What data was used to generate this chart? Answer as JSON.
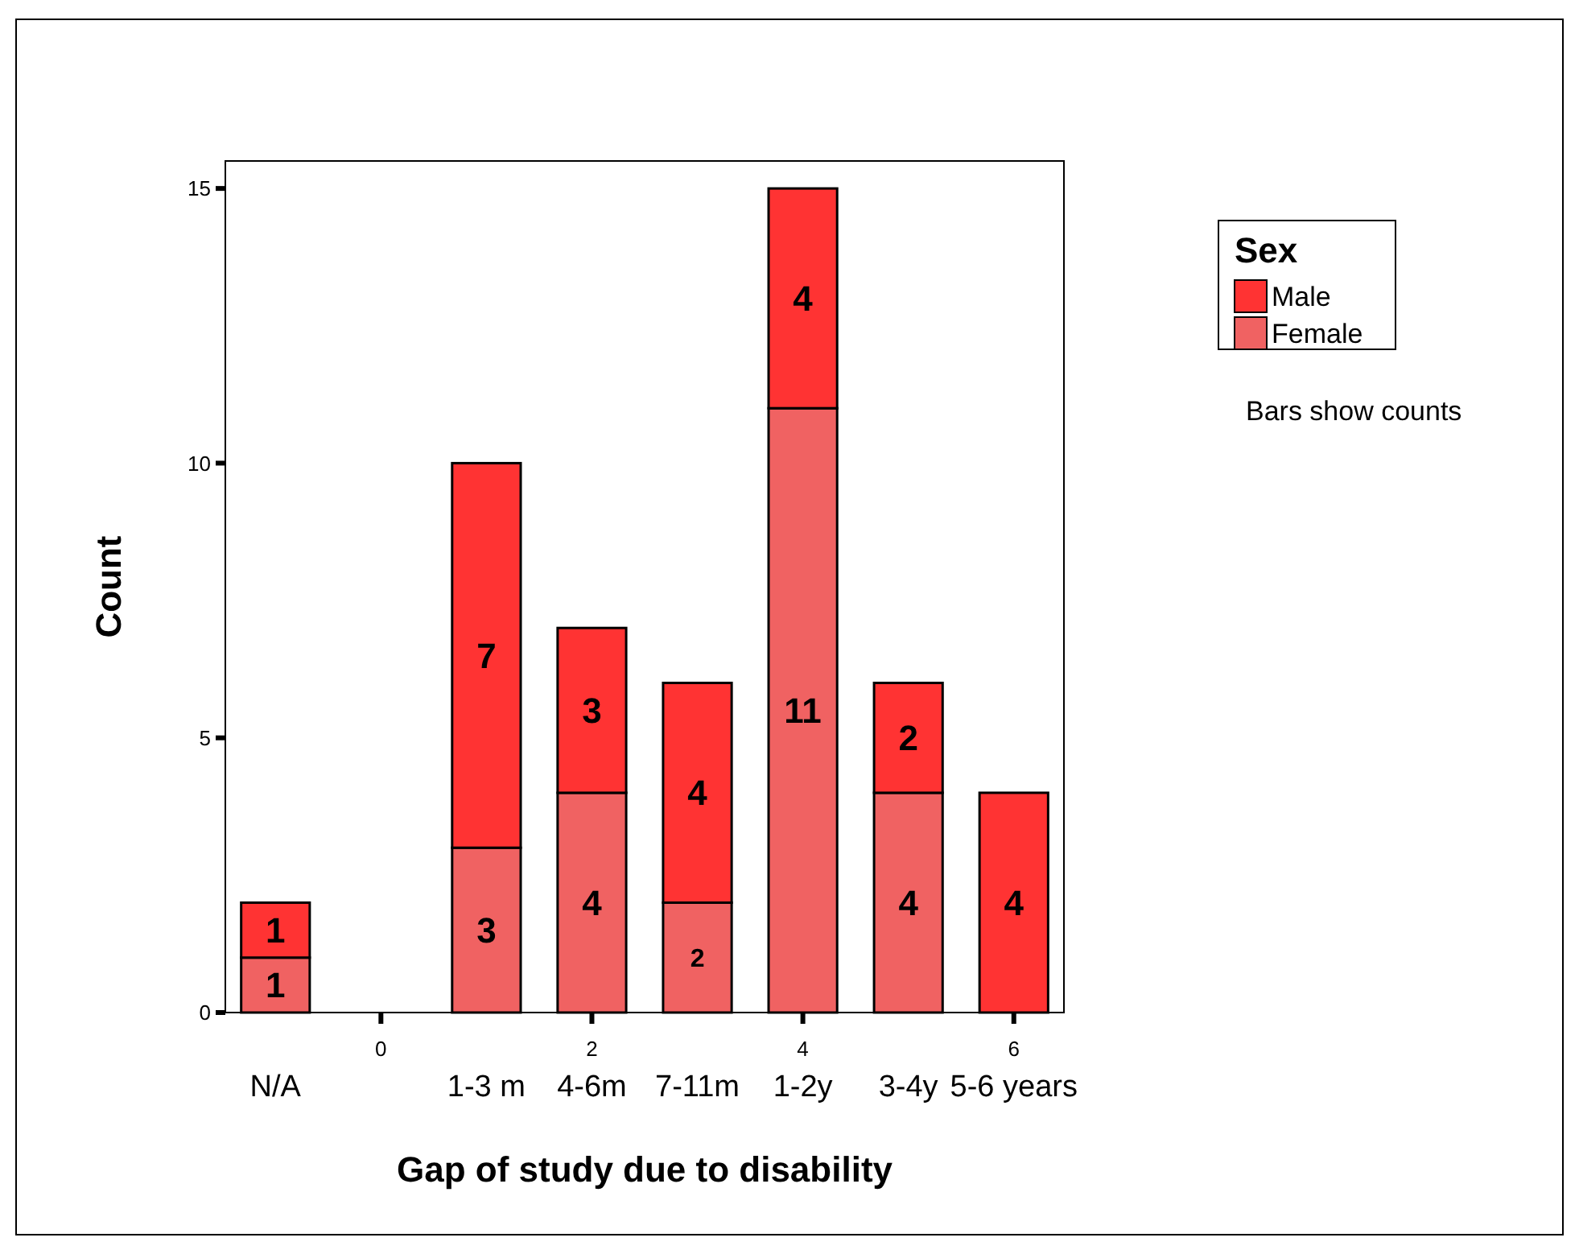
{
  "chart_data": {
    "type": "bar",
    "stacked": true,
    "xlabel": "Gap of study due to disability",
    "ylabel": "Count",
    "legend_title": "Sex",
    "legend": "top right",
    "categories": [
      "N/A",
      null,
      "1-3 m",
      "4-6m",
      "7-11m",
      "1-2y",
      "3-4y",
      "5-6 years"
    ],
    "series": [
      {
        "name": "Female",
        "color": "#f06262",
        "values": [
          1,
          0,
          3,
          4,
          2,
          11,
          4,
          0
        ],
        "value_labels": [
          "1",
          null,
          "3",
          "4",
          "2",
          "11",
          "4",
          null
        ]
      },
      {
        "name": "Male",
        "color": "#ff3333",
        "values": [
          1,
          0,
          7,
          3,
          4,
          4,
          2,
          4
        ],
        "value_labels": [
          "1",
          null,
          "7",
          "3",
          "4",
          "4",
          "2",
          "4"
        ]
      }
    ],
    "ylim": [
      0,
      15.5
    ],
    "yticks": [
      0,
      5,
      10,
      15
    ],
    "annotations": [
      "0",
      "2",
      "4",
      "6",
      "Bars show counts"
    ]
  }
}
